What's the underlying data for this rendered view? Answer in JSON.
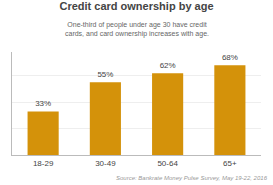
{
  "chart_data": {
    "type": "bar",
    "title": "Credit card ownership by age",
    "subtitle": "One-third of people under age 30 have credit cards, and card ownership increases with age.",
    "annotations": [
      "Source: Bankrate Money Pulse Survey, May 19-22, 2016"
    ],
    "categories": [
      "18-29",
      "30-49",
      "50-64",
      "65+"
    ],
    "values": [
      33,
      55,
      62,
      68
    ],
    "value_labels": [
      "33%",
      "55%",
      "62%",
      "68%"
    ],
    "data_labels": true,
    "color": "#D4920A",
    "ylim": [
      0,
      78
    ],
    "yticks": [
      20,
      40,
      60
    ],
    "grid": true,
    "tick_labels": "x"
  }
}
